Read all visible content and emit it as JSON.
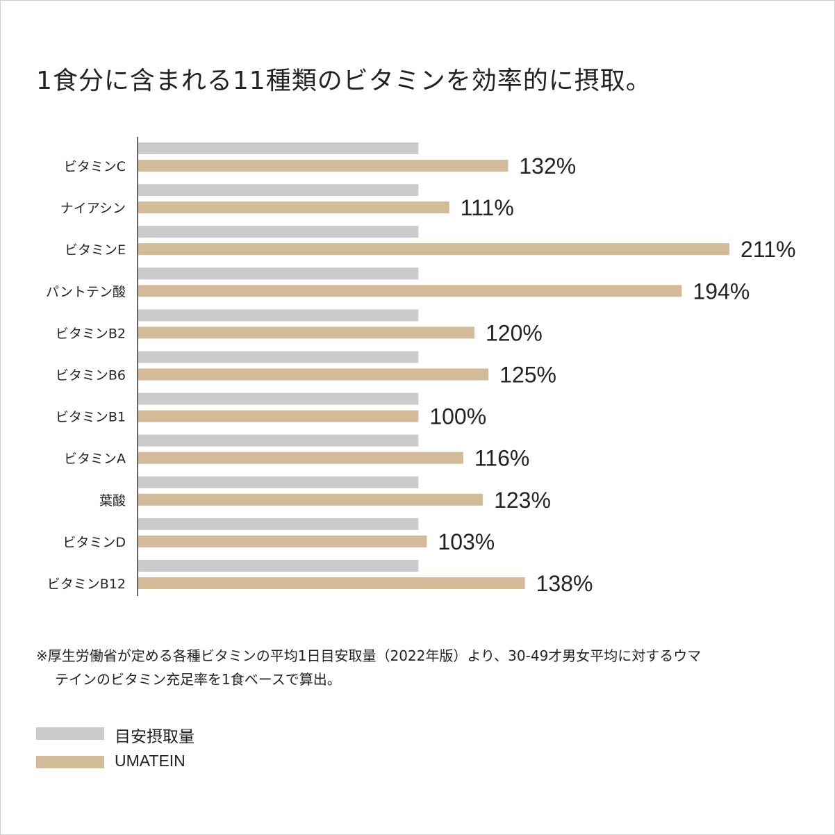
{
  "chart_data": {
    "type": "bar",
    "orientation": "horizontal",
    "title": "1食分に含まれる11種類のビタミンを効率的に摂取。",
    "categories": [
      "ビタミンC",
      "ナイアシン",
      "ビタミンE",
      "パントテン酸",
      "ビタミンB2",
      "ビタミンB6",
      "ビタミンB1",
      "ビタミンA",
      "葉酸",
      "ビタミンD",
      "ビタミンB12"
    ],
    "series": [
      {
        "name": "目安摂取量",
        "color": "#cbcbcb",
        "values": [
          100,
          100,
          100,
          100,
          100,
          100,
          100,
          100,
          100,
          100,
          100
        ]
      },
      {
        "name": "UMATEIN",
        "color": "#d3bb98",
        "values": [
          132,
          111,
          211,
          194,
          120,
          125,
          100,
          116,
          123,
          103,
          138
        ]
      }
    ],
    "data_labels": [
      "132%",
      "111%",
      "211%",
      "194%",
      "120%",
      "125%",
      "100%",
      "116%",
      "123%",
      "103%",
      "138%"
    ],
    "xlim": [
      0,
      211
    ],
    "grid": false,
    "legend_position": "bottom-left"
  },
  "footnote": {
    "line1": "※厚生労働省が定める各種ビタミンの平均1日目安取量（2022年版）より、30-49才男女平均に対するウマ",
    "line2": "テインのビタミン充足率を1食ベースで算出。"
  },
  "legend": [
    {
      "label": "目安摂取量",
      "color": "#cbcbcb"
    },
    {
      "label": "UMATEIN",
      "color": "#d3bb98"
    }
  ]
}
